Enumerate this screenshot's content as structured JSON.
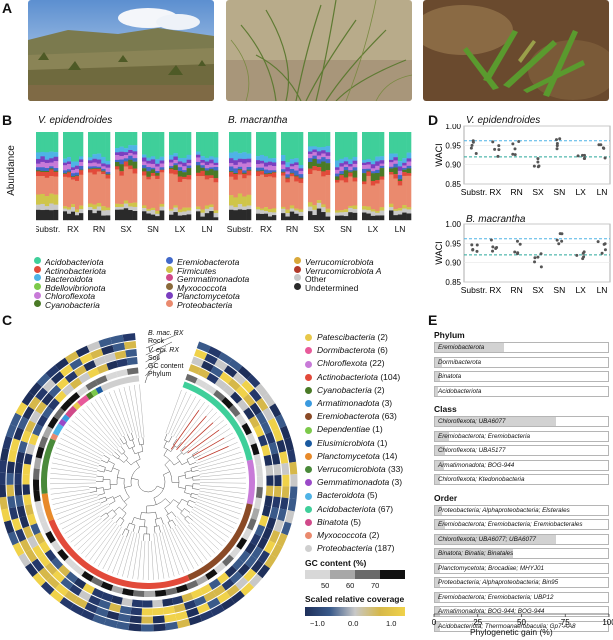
{
  "panels": {
    "a": "A",
    "b": "B",
    "c": "C",
    "d": "D",
    "e": "E"
  },
  "panel_b": {
    "species": [
      "V. epidendroides",
      "B. macrantha"
    ],
    "ylabel": "Abundance",
    "xticks": [
      "Substr.",
      "RX",
      "RN",
      "SX",
      "SN",
      "LX",
      "LN"
    ],
    "legend": [
      {
        "label": "Acidobacteriota",
        "color": "#3fcf9a"
      },
      {
        "label": "Actinobacteriota",
        "color": "#e24a3a"
      },
      {
        "label": "Bacteroidota",
        "color": "#4fb3e6"
      },
      {
        "label": "Bdellovibrionota",
        "color": "#7cc94a"
      },
      {
        "label": "Chloroflexota",
        "color": "#c87ad8"
      },
      {
        "label": "Cyanobacteria",
        "color": "#4a7a26"
      },
      {
        "label": "Eremiobacterota",
        "color": "#4169c9"
      },
      {
        "label": "Firmicutes",
        "color": "#cfc54a"
      },
      {
        "label": "Gemmatimonadota",
        "color": "#d04a8a"
      },
      {
        "label": "Myxococcota",
        "color": "#8a6a3a"
      },
      {
        "label": "Planctomycetota",
        "color": "#7a3fc0"
      },
      {
        "label": "Proteobacteria",
        "color": "#ea8a6e"
      },
      {
        "label": "Verrucomicrobiota",
        "color": "#d9a83a"
      },
      {
        "label": "Verrucomicrobiota A",
        "color": "#b23a2a"
      },
      {
        "label": "Other",
        "color": "#c8c8c8"
      },
      {
        "label": "Undetermined",
        "color": "#2a2a2a"
      }
    ]
  },
  "panel_d": {
    "species": [
      "V. epidendroides",
      "B. macrantha"
    ],
    "ylabel": "WACI",
    "yticks": [
      "1.00",
      "0.95",
      "0.90",
      "0.85"
    ],
    "xticks": [
      "Substr.",
      "RX",
      "RN",
      "SX",
      "SN",
      "LX",
      "LN"
    ]
  },
  "panel_c": {
    "ring_labels": [
      "B. mac. RX",
      "Rock",
      "V. epi. RX",
      "Soil",
      "GC content",
      "Phylum"
    ],
    "phyla": [
      {
        "label": "Patescibacteria (2)",
        "color": "#e8c84a"
      },
      {
        "label": "Dormibacterota (6)",
        "color": "#e85a9a"
      },
      {
        "label": "Chloroflexota (22)",
        "color": "#c87ad8"
      },
      {
        "label": "Actinobacteriota (104)",
        "color": "#e24a3a"
      },
      {
        "label": "Cyanobacteria (2)",
        "color": "#4a7a26"
      },
      {
        "label": "Armatimonadota (3)",
        "color": "#3a9adf"
      },
      {
        "label": "Eremiobacterota (63)",
        "color": "#8a4a26"
      },
      {
        "label": "Dependentiae (1)",
        "color": "#7cc94a"
      },
      {
        "label": "Elusimicrobiota (1)",
        "color": "#1a5aa0"
      },
      {
        "label": "Planctomycetota (14)",
        "color": "#e88a2a"
      },
      {
        "label": "Verrucomicrobiota (33)",
        "color": "#4a8a3a"
      },
      {
        "label": "Gemmatimonadota (3)",
        "color": "#9a4ac8"
      },
      {
        "label": "Bacteroidota (5)",
        "color": "#4fb3e6"
      },
      {
        "label": "Acidobacteriota (67)",
        "color": "#3fcf9a"
      },
      {
        "label": "Binatota (5)",
        "color": "#d04a8a"
      },
      {
        "label": "Myxococcota (2)",
        "color": "#ea8a6e"
      },
      {
        "label": "Proteobacteria (187)",
        "color": "#cfcfcf"
      }
    ],
    "gc_title": "GC content (%)",
    "gc_ticks": [
      "50",
      "60",
      "70"
    ],
    "cov_title": "Scaled relative coverage",
    "cov_ticks": [
      "−1.0",
      "0.0",
      "1.0"
    ]
  },
  "panel_e": {
    "xlabel": "Phylogenetic gain (%)",
    "xticks": [
      "0",
      "25",
      "50",
      "75",
      "100"
    ],
    "sections": [
      {
        "title": "Phylum",
        "rows": [
          {
            "label": "Eremiobacterota",
            "value": 40
          },
          {
            "label": "Dormibacterota",
            "value": 4
          },
          {
            "label": "Binatota",
            "value": 3
          },
          {
            "label": "Acidobacteriota",
            "value": 2
          }
        ]
      },
      {
        "title": "Class",
        "rows": [
          {
            "label": "Chloroflexota; UBA6077",
            "value": 70
          },
          {
            "label": "Eremiobacterota; Eremiobacteria",
            "value": 8
          },
          {
            "label": "Chloroflexota; UBA5177",
            "value": 6
          },
          {
            "label": "Armatimonadota; BOG-944",
            "value": 5
          },
          {
            "label": "Chloroflexota; Ktedonobacteria",
            "value": 3
          }
        ]
      },
      {
        "title": "Order",
        "rows": [
          {
            "label": "Proteobacteria; Alphaproteobacteria; Elsterales",
            "value": 4
          },
          {
            "label": "Eremiobacterota; Eremiobacteria; Eremiobacterales",
            "value": 6
          },
          {
            "label": "Chloroflexota; UBA6077; UBA6077",
            "value": 70
          },
          {
            "label": "Binatota; Binatia; Binatales",
            "value": 45
          },
          {
            "label": "Planctomycetota; Brocadiae; MHYJ01",
            "value": 3
          },
          {
            "label": "Proteobacteria; Alphaproteobacteria; Bin95",
            "value": 3
          },
          {
            "label": "Eremiobacterota; Eremiobacteria; UBP12",
            "value": 3
          },
          {
            "label": "Armatimonadota; BOG-944; BOG-944",
            "value": 3
          },
          {
            "label": "Acidobacteriota; Thermoanaerobaculia; Gp7-AA8",
            "value": 3
          }
        ]
      }
    ]
  }
}
